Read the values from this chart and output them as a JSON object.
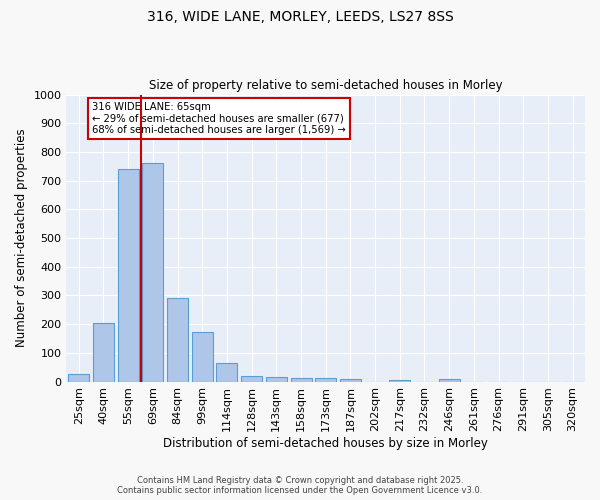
{
  "title1": "316, WIDE LANE, MORLEY, LEEDS, LS27 8SS",
  "title2": "Size of property relative to semi-detached houses in Morley",
  "xlabel": "Distribution of semi-detached houses by size in Morley",
  "ylabel": "Number of semi-detached properties",
  "footer1": "Contains HM Land Registry data © Crown copyright and database right 2025.",
  "footer2": "Contains public sector information licensed under the Open Government Licence v3.0.",
  "categories": [
    "25sqm",
    "40sqm",
    "55sqm",
    "69sqm",
    "84sqm",
    "99sqm",
    "114sqm",
    "128sqm",
    "143sqm",
    "158sqm",
    "173sqm",
    "187sqm",
    "202sqm",
    "217sqm",
    "232sqm",
    "246sqm",
    "261sqm",
    "276sqm",
    "291sqm",
    "305sqm",
    "320sqm"
  ],
  "values": [
    25,
    203,
    740,
    760,
    291,
    172,
    64,
    18,
    15,
    12,
    13,
    8,
    0,
    7,
    0,
    8,
    0,
    0,
    0,
    0,
    0
  ],
  "bar_color": "#aec6e8",
  "bar_edge_color": "#5a9fd4",
  "bg_color": "#e8eef8",
  "grid_color": "#ffffff",
  "vline_color": "#cc0000",
  "vline_x_index": 2.5,
  "annotation_title": "316 WIDE LANE: 65sqm",
  "annotation_line1": "← 29% of semi-detached houses are smaller (677)",
  "annotation_line2": "68% of semi-detached houses are larger (1,569) →",
  "annotation_box_color": "#cc0000",
  "fig_bg_color": "#f8f8f8",
  "ylim": [
    0,
    1000
  ],
  "yticks": [
    0,
    100,
    200,
    300,
    400,
    500,
    600,
    700,
    800,
    900,
    1000
  ]
}
